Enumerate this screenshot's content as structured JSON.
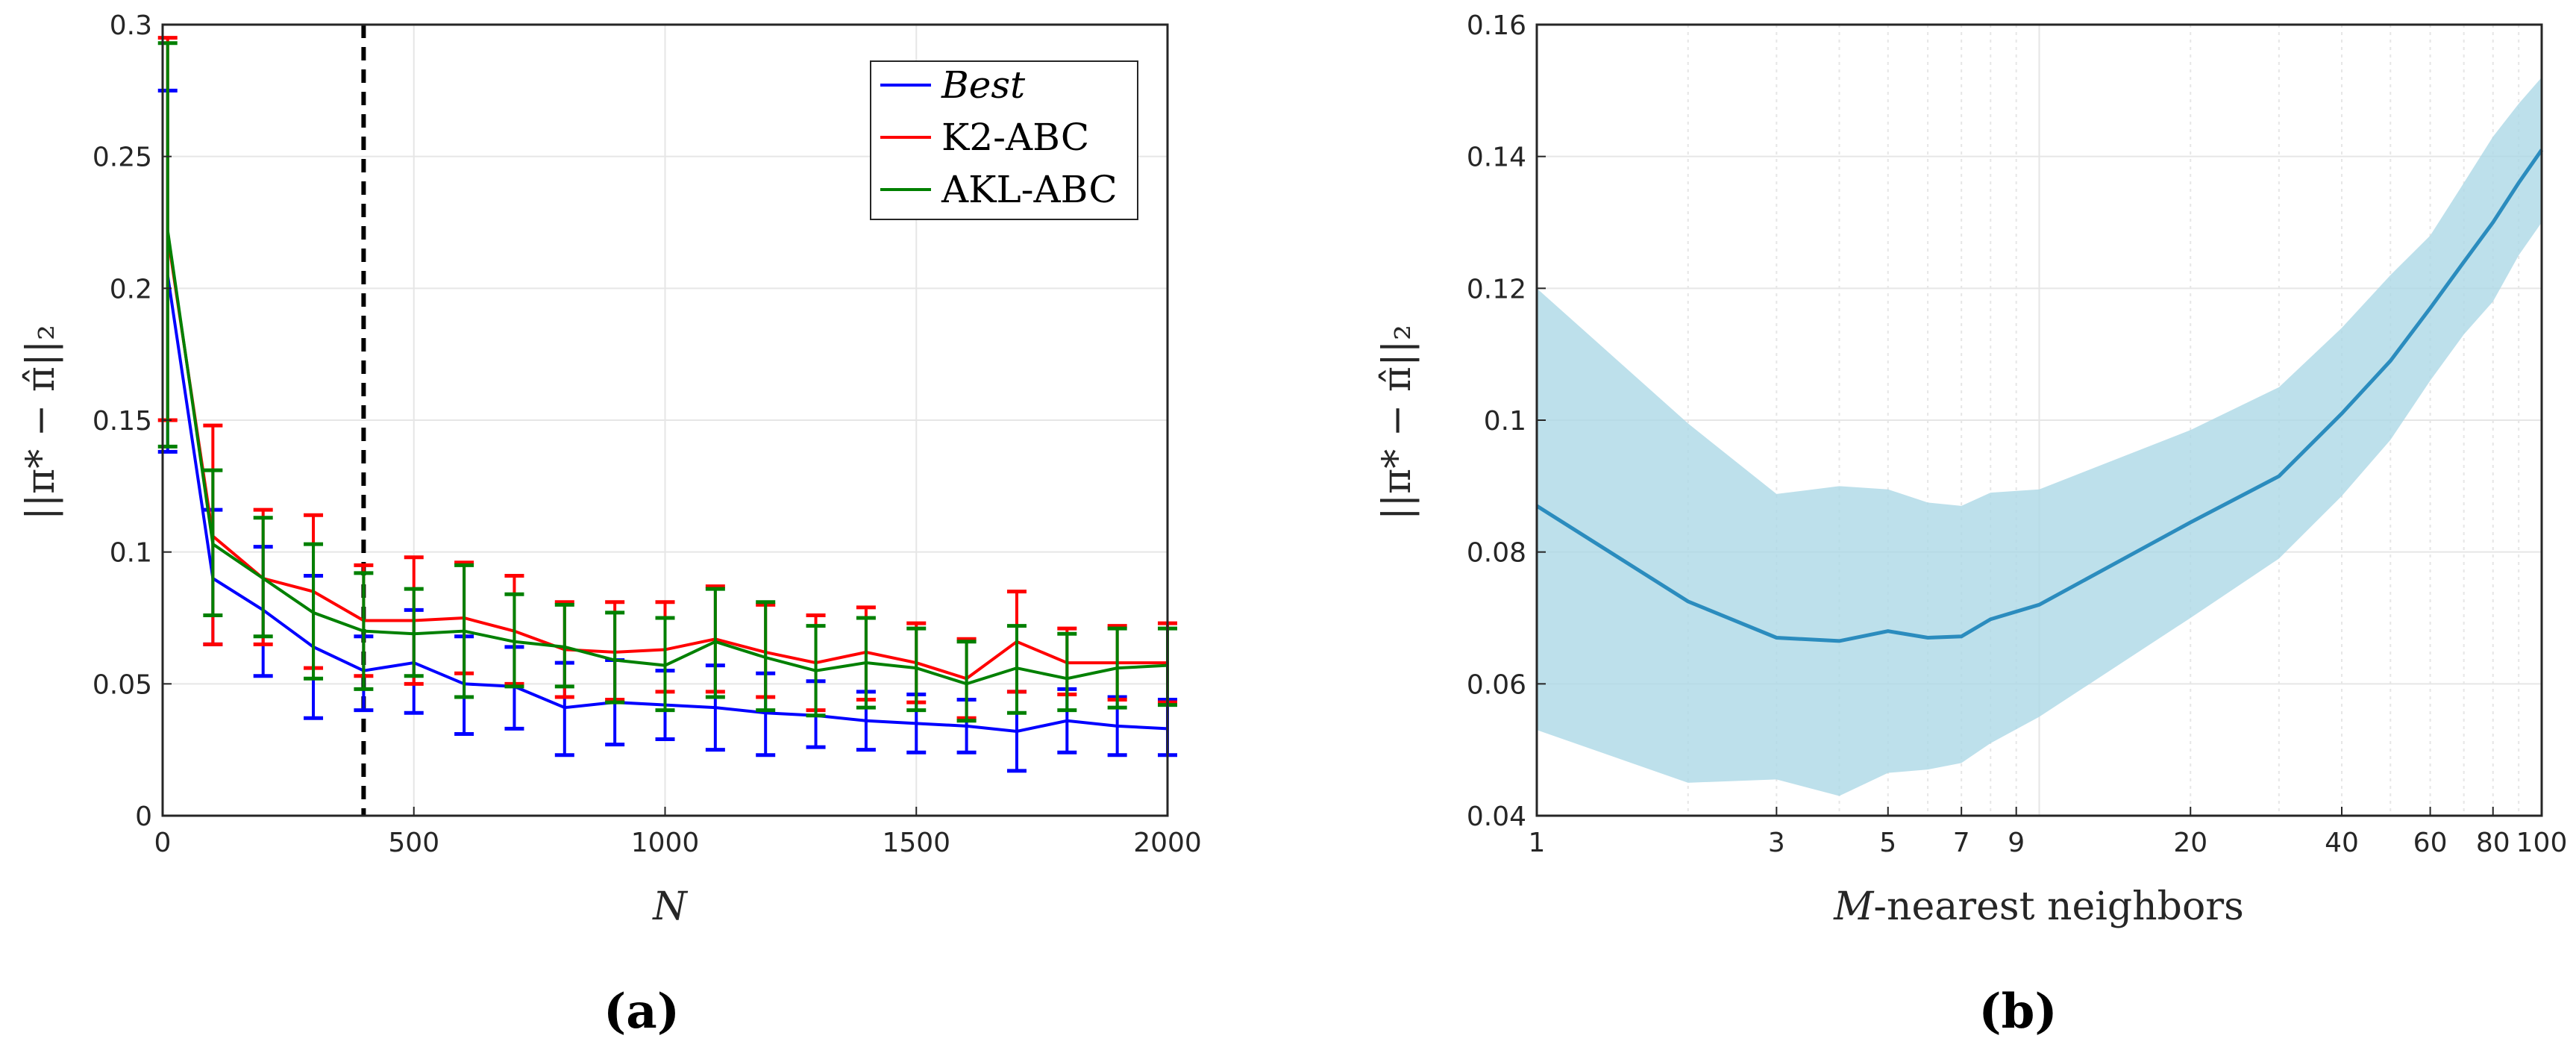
{
  "captions": {
    "a": "(a)",
    "b": "(b)"
  },
  "chart_data": [
    {
      "type": "line",
      "panel": "a",
      "xlabel": "N",
      "ylabel": "||π* − π̂||₂",
      "xlim": [
        0,
        2000
      ],
      "ylim": [
        0,
        0.3
      ],
      "xticks": [
        0,
        500,
        1000,
        1500,
        2000
      ],
      "xtick_labels": [
        "0",
        "500",
        "1000",
        "1500",
        "2000"
      ],
      "yticks": [
        0,
        0.05,
        0.1,
        0.15,
        0.2,
        0.25,
        0.3
      ],
      "ytick_labels": [
        "0",
        "0.05",
        "0.1",
        "0.15",
        "0.2",
        "0.25",
        "0.3"
      ],
      "grid": true,
      "legend_position": "top-right",
      "vline": {
        "x": 400,
        "style": "dashed",
        "color": "#000000"
      },
      "x": [
        10,
        100,
        200,
        300,
        400,
        500,
        600,
        700,
        800,
        900,
        1000,
        1100,
        1200,
        1300,
        1400,
        1500,
        1600,
        1700,
        1800,
        1900,
        2000
      ],
      "series": [
        {
          "name": "Best",
          "italic": true,
          "color": "#0000ff",
          "values": [
            0.205,
            0.09,
            0.078,
            0.064,
            0.055,
            0.058,
            0.05,
            0.049,
            0.041,
            0.043,
            0.042,
            0.041,
            0.039,
            0.038,
            0.036,
            0.035,
            0.034,
            0.032,
            0.036,
            0.034,
            0.033
          ],
          "err_low": [
            0.138,
            0.065,
            0.053,
            0.037,
            0.04,
            0.039,
            0.031,
            0.033,
            0.023,
            0.027,
            0.029,
            0.025,
            0.023,
            0.026,
            0.025,
            0.024,
            0.024,
            0.017,
            0.024,
            0.023,
            0.023
          ],
          "err_high": [
            0.275,
            0.116,
            0.102,
            0.091,
            0.068,
            0.078,
            0.068,
            0.064,
            0.058,
            0.059,
            0.055,
            0.057,
            0.054,
            0.051,
            0.047,
            0.046,
            0.044,
            0.047,
            0.048,
            0.045,
            0.044
          ]
        },
        {
          "name": "K2-ABC",
          "italic": false,
          "color": "#ff0000",
          "values": [
            0.22,
            0.106,
            0.09,
            0.085,
            0.074,
            0.074,
            0.075,
            0.07,
            0.063,
            0.062,
            0.063,
            0.067,
            0.062,
            0.058,
            0.062,
            0.058,
            0.052,
            0.066,
            0.058,
            0.058,
            0.058
          ],
          "err_low": [
            0.15,
            0.065,
            0.065,
            0.056,
            0.053,
            0.05,
            0.054,
            0.05,
            0.045,
            0.044,
            0.047,
            0.047,
            0.045,
            0.04,
            0.044,
            0.043,
            0.037,
            0.047,
            0.046,
            0.044,
            0.043
          ],
          "err_high": [
            0.295,
            0.148,
            0.116,
            0.114,
            0.095,
            0.098,
            0.096,
            0.091,
            0.081,
            0.081,
            0.081,
            0.087,
            0.08,
            0.076,
            0.079,
            0.073,
            0.067,
            0.085,
            0.071,
            0.072,
            0.073
          ]
        },
        {
          "name": "AKL-ABC",
          "italic": false,
          "color": "#008000",
          "values": [
            0.222,
            0.103,
            0.09,
            0.077,
            0.07,
            0.069,
            0.07,
            0.066,
            0.064,
            0.059,
            0.057,
            0.066,
            0.06,
            0.055,
            0.058,
            0.056,
            0.05,
            0.056,
            0.052,
            0.056,
            0.057
          ],
          "err_low": [
            0.14,
            0.076,
            0.068,
            0.052,
            0.048,
            0.053,
            0.045,
            0.049,
            0.049,
            0.043,
            0.04,
            0.045,
            0.04,
            0.038,
            0.041,
            0.04,
            0.036,
            0.039,
            0.04,
            0.041,
            0.042
          ],
          "err_high": [
            0.293,
            0.131,
            0.113,
            0.103,
            0.092,
            0.086,
            0.095,
            0.084,
            0.08,
            0.077,
            0.075,
            0.086,
            0.081,
            0.072,
            0.075,
            0.071,
            0.066,
            0.072,
            0.069,
            0.071,
            0.071
          ]
        }
      ]
    },
    {
      "type": "area",
      "panel": "b",
      "xlabel": "M-nearest neighbors",
      "xlabel_var": "M",
      "xlabel_rest": "-nearest neighbors",
      "ylabel": "||π* − π̂||₂",
      "xscale": "log",
      "xlim": [
        1,
        100
      ],
      "ylim": [
        0.04,
        0.16
      ],
      "xticks": [
        1,
        3,
        5,
        7,
        9,
        20,
        40,
        60,
        80,
        100
      ],
      "xtick_labels": [
        "1",
        "3",
        "5",
        "7",
        "9",
        "20",
        "40",
        "60",
        "80",
        "100"
      ],
      "xminor_grid": [
        2,
        3,
        4,
        5,
        6,
        7,
        8,
        9,
        20,
        30,
        40,
        50,
        60,
        70,
        80,
        90
      ],
      "yticks": [
        0.04,
        0.06,
        0.08,
        0.1,
        0.12,
        0.14,
        0.16
      ],
      "ytick_labels": [
        "0.04",
        "0.06",
        "0.08",
        "0.1",
        "0.12",
        "0.14",
        "0.16"
      ],
      "grid": true,
      "line_color": "#2b8cbe",
      "band_color": "#add8e6",
      "x": [
        1,
        2,
        3,
        4,
        5,
        6,
        7,
        8,
        10,
        20,
        30,
        40,
        50,
        60,
        70,
        80,
        90,
        100
      ],
      "mean": [
        0.087,
        0.0725,
        0.067,
        0.0665,
        0.068,
        0.067,
        0.0672,
        0.0698,
        0.072,
        0.0845,
        0.0915,
        0.101,
        0.109,
        0.117,
        0.124,
        0.13,
        0.136,
        0.141
      ],
      "lower": [
        0.053,
        0.045,
        0.0455,
        0.043,
        0.0465,
        0.047,
        0.048,
        0.051,
        0.055,
        0.07,
        0.079,
        0.0885,
        0.097,
        0.106,
        0.113,
        0.118,
        0.125,
        0.13
      ],
      "upper": [
        0.12,
        0.0995,
        0.0888,
        0.09,
        0.0895,
        0.0875,
        0.087,
        0.089,
        0.0895,
        0.0985,
        0.105,
        0.114,
        0.122,
        0.128,
        0.136,
        0.143,
        0.148,
        0.152
      ]
    }
  ]
}
